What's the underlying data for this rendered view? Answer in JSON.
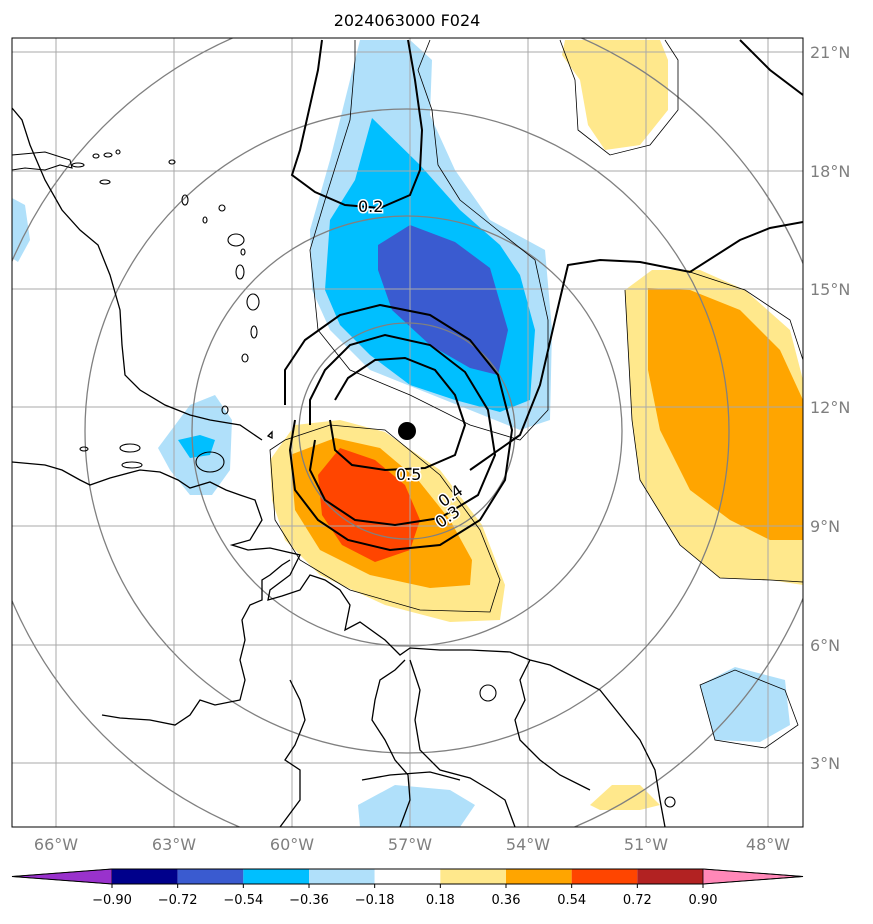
{
  "title": "2024063000 F024",
  "lon_ticks": [
    "66°W",
    "63°W",
    "60°W",
    "57°W",
    "54°W",
    "51°W",
    "48°W"
  ],
  "lat_ticks": [
    "21°N",
    "18°N",
    "15°N",
    "12°N",
    "9°N",
    "6°N",
    "3°N"
  ],
  "contour_labels": [
    "0.2",
    "0.5",
    "0.4",
    "0.3"
  ],
  "colorbar": {
    "ticks": [
      "−0.90",
      "−0.72",
      "−0.54",
      "−0.36",
      "−0.18",
      "0.18",
      "0.36",
      "0.54",
      "0.72",
      "0.90"
    ],
    "colors": [
      "#9932cc",
      "#00008b",
      "#3a5bd0",
      "#00bfff",
      "#b0e0fa",
      "#ffffff",
      "#ffe88c",
      "#ffa500",
      "#ff4500",
      "#b22222",
      "#ff88b8"
    ]
  },
  "colors": {
    "grid": "#a9a9a9",
    "range_rings": "#808080",
    "coast": "#000000",
    "center_marker": "#000000"
  },
  "center": {
    "lon": -57,
    "lat": 11.4
  }
}
